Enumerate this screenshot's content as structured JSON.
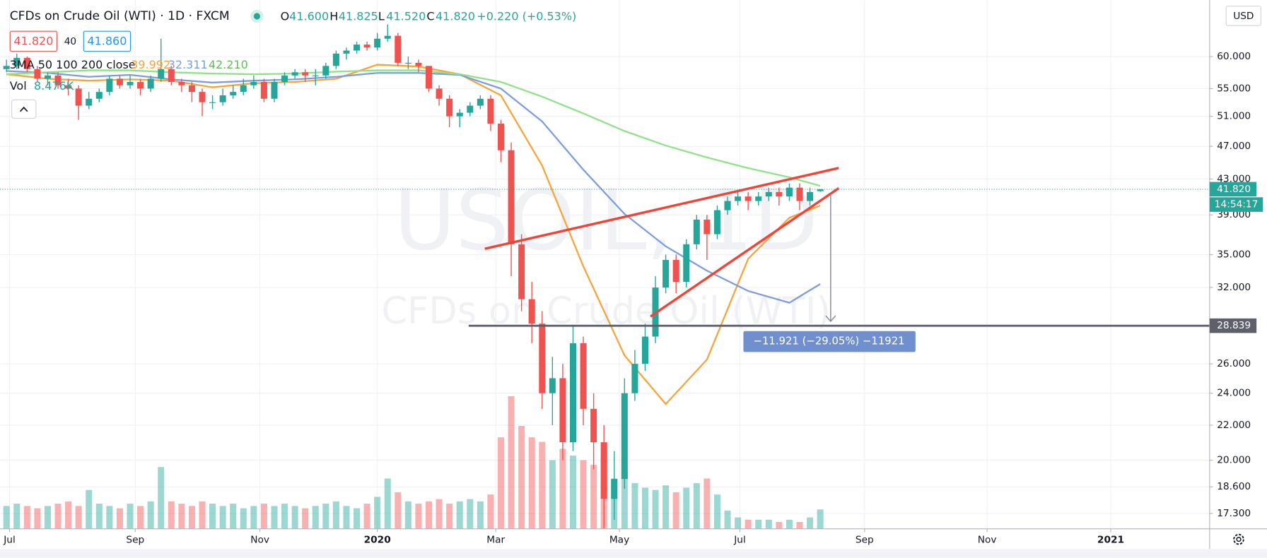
{
  "header": {
    "title": "CFDs on Crude Oil (WTI) · 1D · FXCM",
    "ohlc": [
      {
        "label": "O",
        "value": "41.600"
      },
      {
        "label": "H",
        "value": "41.825"
      },
      {
        "label": "L",
        "value": "41.520"
      },
      {
        "label": "C",
        "value": "41.820"
      }
    ],
    "change": "+0.220 (+0.53%)",
    "bid": "41.820",
    "spread": "40",
    "ask": "41.860",
    "ma_label": "3MA 50 100 200 close",
    "ma_values": [
      "39.992",
      "32.311",
      "42.210"
    ],
    "vol_label": "Vol",
    "vol_value": "8.476K",
    "currency": "USD",
    "watermark": [
      "USOIL, 1D",
      "CFDs on Crude Oil (WTI)"
    ],
    "measure_label": "−11.921 (−29.05%) −11921"
  },
  "chart_data": {
    "type": "candlestick",
    "log": true,
    "grid": true,
    "up_color": "#26a69a",
    "down_color": "#ef5350",
    "open": [
      58,
      58.5,
      59.8,
      58,
      56.5,
      57,
      55.5,
      55,
      52.5,
      53.5,
      54.5,
      56.5,
      55.5,
      56,
      55,
      56.5,
      58,
      56,
      55.5,
      54.5,
      53,
      53,
      54,
      54.5,
      55.5,
      56,
      53.5,
      56,
      57,
      57.5,
      57,
      57,
      58.5,
      60.5,
      61,
      62,
      61.5,
      63,
      63.5,
      59,
      59,
      58.5,
      55,
      53.5,
      51,
      51.5,
      52.5,
      53.5,
      50,
      46.5,
      36,
      31,
      29,
      24,
      25,
      21,
      27.5,
      23,
      21,
      18,
      19,
      24,
      26,
      28,
      32,
      34.5,
      32.5,
      36,
      38.5,
      37,
      39.5,
      40.5,
      41,
      40.5,
      41,
      41.5,
      41,
      42,
      40.5,
      41.6
    ],
    "high": [
      59.5,
      60.5,
      60,
      58.5,
      57.5,
      57.5,
      56.5,
      55.5,
      54.5,
      55,
      57,
      57,
      57,
      56.5,
      57,
      63,
      58.5,
      56.5,
      56,
      55,
      54,
      55,
      55.5,
      56.5,
      57,
      56.5,
      56.5,
      57.5,
      58,
      58,
      58,
      59,
      61,
      61.5,
      62.5,
      62.5,
      64,
      65.5,
      64,
      60,
      59.5,
      58.5,
      55.5,
      54,
      52,
      53,
      54,
      54,
      50.5,
      47.5,
      37,
      32.5,
      30,
      26.5,
      26,
      28.8,
      28,
      24,
      22,
      20.5,
      25,
      27,
      29,
      33,
      35,
      35,
      36.5,
      39,
      39,
      40,
      41,
      41.5,
      41.5,
      41.5,
      42,
      42,
      42.5,
      42.5,
      42,
      41.825
    ],
    "low": [
      57.5,
      58,
      57.5,
      56,
      55.5,
      55,
      54,
      50.5,
      52,
      53,
      54,
      55,
      55,
      54,
      54.5,
      56,
      55.5,
      54.5,
      53,
      51,
      52,
      52.5,
      53.5,
      54,
      55,
      53,
      53,
      55.5,
      56.5,
      56,
      55.5,
      56.5,
      58,
      59.5,
      60.5,
      61,
      61,
      62.5,
      58.5,
      58,
      57.5,
      54.5,
      52.5,
      49.5,
      49.5,
      51,
      52,
      49,
      45,
      33,
      30,
      27.5,
      23,
      22,
      20,
      20.5,
      22,
      19.5,
      16.6,
      17,
      18.5,
      23.5,
      25.5,
      27.5,
      31.5,
      31.5,
      32,
      35.5,
      34.5,
      36.5,
      39,
      40,
      39.5,
      40,
      40.5,
      40,
      40.5,
      39.5,
      40,
      41.52
    ],
    "close": [
      58.5,
      59.8,
      58,
      56.5,
      57,
      55.5,
      55,
      52.5,
      53.5,
      54.5,
      56.5,
      55.5,
      56,
      55,
      56.5,
      58,
      56,
      55.5,
      54.5,
      53,
      53,
      54,
      54.5,
      55.5,
      56,
      53.5,
      56,
      57,
      57.5,
      57,
      57,
      58.5,
      60.5,
      61,
      62,
      61.5,
      63,
      63.5,
      59,
      59,
      58.5,
      55,
      53.5,
      51,
      51.5,
      52.5,
      53.5,
      50,
      46.5,
      36,
      31,
      29,
      24,
      25,
      21,
      27.5,
      23,
      21,
      18,
      19,
      24,
      26,
      28,
      32,
      34.5,
      32.5,
      36,
      38.5,
      37,
      39.5,
      40.5,
      41,
      40.5,
      41,
      41.5,
      41,
      42,
      40.5,
      41.5,
      41.82
    ],
    "volume": [
      10,
      11,
      10,
      9,
      10,
      11,
      12,
      10,
      17,
      11,
      10,
      9,
      11,
      10,
      12,
      27,
      12,
      11,
      10,
      12,
      11,
      10,
      11,
      9,
      10,
      11,
      10,
      11,
      10,
      9,
      10,
      11,
      12,
      10,
      9,
      11,
      14,
      22,
      16,
      12,
      11,
      12,
      13,
      11,
      12,
      13,
      12,
      15,
      40,
      58,
      45,
      40,
      38,
      30,
      35,
      32,
      30,
      28,
      32,
      22,
      25,
      20,
      18,
      17,
      19,
      16,
      18,
      20,
      22,
      15,
      8,
      5,
      4,
      4,
      4,
      3,
      4,
      3,
      5,
      8.476
    ],
    "volume_ylim": [
      0,
      60
    ],
    "series": [
      {
        "color": "#f7a43a",
        "x": [
          0,
          4,
          8,
          12,
          16,
          20,
          24,
          28,
          32,
          36,
          40,
          44,
          48,
          52,
          56,
          60,
          64,
          68,
          72,
          76,
          79
        ],
        "values": [
          57.2,
          56.5,
          56.2,
          56.4,
          56.2,
          55.2,
          55.8,
          56.0,
          56.5,
          58.7,
          58.4,
          57.2,
          54.0,
          44.6,
          33.9,
          26.6,
          23.3,
          26.3,
          34.6,
          38.7,
          39.992
        ]
      },
      {
        "color": "#7b9de0",
        "x": [
          0,
          4,
          8,
          12,
          16,
          20,
          24,
          28,
          32,
          36,
          40,
          44,
          48,
          52,
          56,
          60,
          64,
          68,
          72,
          76,
          79
        ],
        "values": [
          57.7,
          57.4,
          56.8,
          57.1,
          56.4,
          55.9,
          56.2,
          56.4,
          56.8,
          57.4,
          57.4,
          57.1,
          55.0,
          50.3,
          44.1,
          39.1,
          35.8,
          33.5,
          31.7,
          30.7,
          32.311
        ]
      },
      {
        "color": "#8fe386",
        "x": [
          0,
          4,
          8,
          12,
          16,
          20,
          24,
          28,
          32,
          36,
          40,
          44,
          48,
          52,
          56,
          60,
          64,
          68,
          72,
          76,
          79
        ],
        "values": [
          57.2,
          57.5,
          57.8,
          57.8,
          57.5,
          57.3,
          57.2,
          57.3,
          57.6,
          57.8,
          57.8,
          57.2,
          56.0,
          53.8,
          51.4,
          49.0,
          47.1,
          45.6,
          44.3,
          43.2,
          42.21
        ]
      }
    ],
    "ylim": [
      16.59,
      69.98
    ],
    "yticks": [
      {
        "value": 60,
        "label": "60.000"
      },
      {
        "value": 55,
        "label": "55.000"
      },
      {
        "value": 51,
        "label": "51.000"
      },
      {
        "value": 47,
        "label": "47.000"
      },
      {
        "value": 43,
        "label": "43.000"
      },
      {
        "value": 39,
        "label": "39.000"
      },
      {
        "value": 35,
        "label": "35.000"
      },
      {
        "value": 32,
        "label": "32.000"
      },
      {
        "value": 26,
        "label": "26.000"
      },
      {
        "value": 24,
        "label": "24.000"
      },
      {
        "value": 22,
        "label": "22.000"
      },
      {
        "value": 20,
        "label": "20.000"
      },
      {
        "value": 18.6,
        "label": "18.600"
      },
      {
        "value": 17.3,
        "label": "17.300"
      }
    ],
    "xlim": [
      -0.63,
      116.8
    ],
    "xticks": [
      {
        "value": 0.3,
        "label": "Jul"
      },
      {
        "value": 12.5,
        "label": "Sep"
      },
      {
        "value": 24.6,
        "label": "Nov"
      },
      {
        "value": 36,
        "label": "2020"
      },
      {
        "value": 47.5,
        "label": "Mar"
      },
      {
        "value": 59.5,
        "label": "May"
      },
      {
        "value": 71.2,
        "label": "Jul"
      },
      {
        "value": 83.3,
        "label": "Sep"
      },
      {
        "value": 95.2,
        "label": "Nov"
      },
      {
        "value": 107.2,
        "label": "2021"
      }
    ],
    "last_price": {
      "value": 41.82,
      "label": "41.820"
    },
    "countdown": "14:54:17",
    "horizontal_line": {
      "value": 28.839,
      "label": "28.839"
    }
  }
}
